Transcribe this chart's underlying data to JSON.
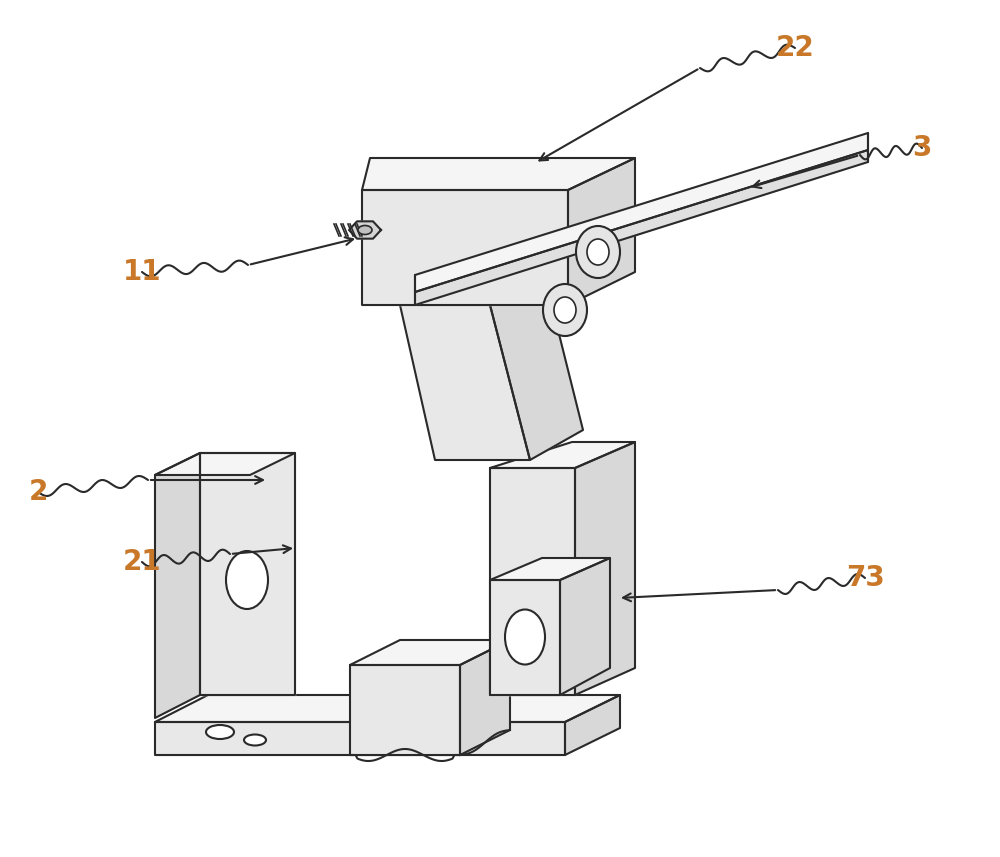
{
  "bg_color": "#ffffff",
  "line_color": "#2a2a2a",
  "line_width": 1.5,
  "label_color": "#c87828",
  "label_fontsize": 20,
  "fill_top": "#f5f5f5",
  "fill_front": "#e8e8e8",
  "fill_side": "#d8d8d8",
  "fill_white": "#ffffff"
}
